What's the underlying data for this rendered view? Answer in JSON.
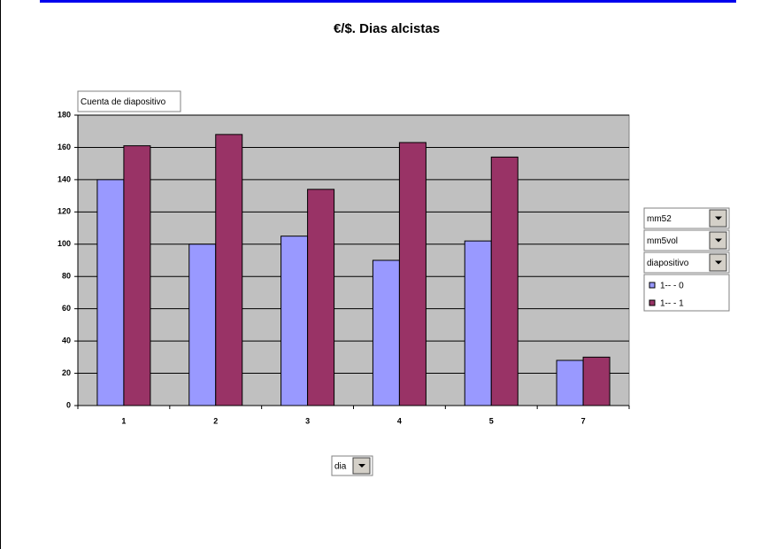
{
  "chart_data": {
    "type": "bar",
    "title": "€/$. Dias alcistas",
    "data_field": "Cuenta de diapositivo",
    "series_fields": [
      "mm52",
      "mm5vol",
      "diapositivo"
    ],
    "category_field": "dia",
    "categories": [
      "1",
      "2",
      "3",
      "4",
      "5",
      "7"
    ],
    "series": [
      {
        "name": "1-- - 0",
        "color": "#9999ff",
        "values": [
          140,
          100,
          105,
          90,
          102,
          28
        ]
      },
      {
        "name": "1-- - 1",
        "color": "#993366",
        "values": [
          161,
          168,
          134,
          163,
          154,
          30
        ]
      }
    ],
    "ylim": [
      0,
      180
    ],
    "yticks": [
      0,
      20,
      40,
      60,
      80,
      100,
      120,
      140,
      160,
      180
    ],
    "grid": true
  }
}
